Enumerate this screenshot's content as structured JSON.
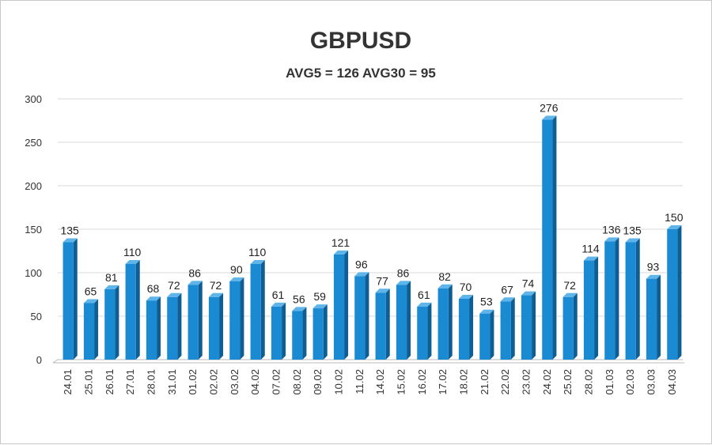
{
  "chart_data": {
    "type": "bar",
    "title": "GBPUSD",
    "subtitle": "AVG5 = 126 AVG30 = 95",
    "xlabel": "",
    "ylabel": "",
    "categories": [
      "24.01",
      "25.01",
      "26.01",
      "27.01",
      "28.01",
      "31.01",
      "01.02",
      "02.02",
      "03.02",
      "04.02",
      "07.02",
      "08.02",
      "09.02",
      "10.02",
      "11.02",
      "14.02",
      "15.02",
      "16.02",
      "17.02",
      "18.02",
      "21.02",
      "22.02",
      "23.02",
      "24.02",
      "25.02",
      "28.02",
      "01.03",
      "02.03",
      "03.03",
      "04.03"
    ],
    "values": [
      135,
      65,
      81,
      110,
      68,
      72,
      86,
      72,
      90,
      110,
      61,
      56,
      59,
      121,
      96,
      77,
      86,
      61,
      82,
      70,
      53,
      67,
      74,
      276,
      72,
      114,
      136,
      135,
      93,
      150
    ],
    "ylim": [
      0,
      300
    ],
    "yticks": [
      0,
      50,
      100,
      150,
      200,
      250,
      300
    ],
    "grid": true,
    "legend": "none",
    "colors": {
      "bar_front": "#1a8ad3",
      "bar_side": "#0e5e94",
      "bar_top": "#5fb4ea",
      "grid": "#d9d9d9",
      "axis": "#b8b8b8"
    }
  }
}
